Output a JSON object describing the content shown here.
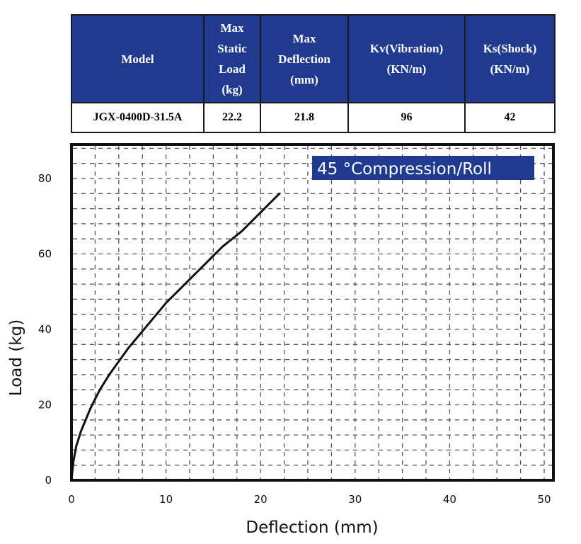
{
  "table": {
    "headers": [
      {
        "line1": "Max",
        "line2": "",
        "label": "Model"
      },
      {
        "label": "Max Static Load (kg)"
      }
    ],
    "columns": [
      {
        "key": "model",
        "lines": [
          "Model"
        ]
      },
      {
        "key": "max_static_load",
        "lines": [
          "Max",
          "Static",
          "Load",
          "(kg)"
        ]
      },
      {
        "key": "max_deflection",
        "lines": [
          "Max",
          "Deflection",
          "(mm)"
        ]
      },
      {
        "key": "kv",
        "lines": [
          "Kv(Vibration)",
          "(KN/m)"
        ]
      },
      {
        "key": "ks",
        "lines": [
          "Ks(Shock)",
          "(KN/m)"
        ]
      }
    ],
    "row": {
      "model": "JGX-0400D-31.5A",
      "max_static_load": "22.2",
      "max_deflection": "21.8",
      "kv": "96",
      "ks": "42"
    }
  },
  "colors": {
    "header_bg": "#1f3a8f",
    "legend_bg": "#1f3a8f",
    "curve": "#111111",
    "grid": "#555555"
  },
  "chart_data": {
    "type": "line",
    "xlabel": "Deflection (mm)",
    "ylabel": "Load (kg)",
    "xlim": [
      0,
      50
    ],
    "ylim": [
      0,
      80
    ],
    "xticks": [
      0,
      10,
      20,
      30,
      40,
      50
    ],
    "yticks": [
      0,
      20,
      40,
      60,
      80
    ],
    "grid": true,
    "legend_position": "top-right",
    "annotation": "45 °Compression/Roll",
    "series": [
      {
        "x": [
          0,
          0.2,
          0.5,
          1,
          2,
          3,
          4,
          6,
          8,
          10,
          12,
          14,
          16,
          18,
          20,
          22
        ],
        "y": [
          0,
          5,
          9,
          13,
          19,
          24,
          28,
          35,
          41,
          47,
          52,
          57,
          62,
          66,
          71,
          76
        ]
      }
    ]
  }
}
